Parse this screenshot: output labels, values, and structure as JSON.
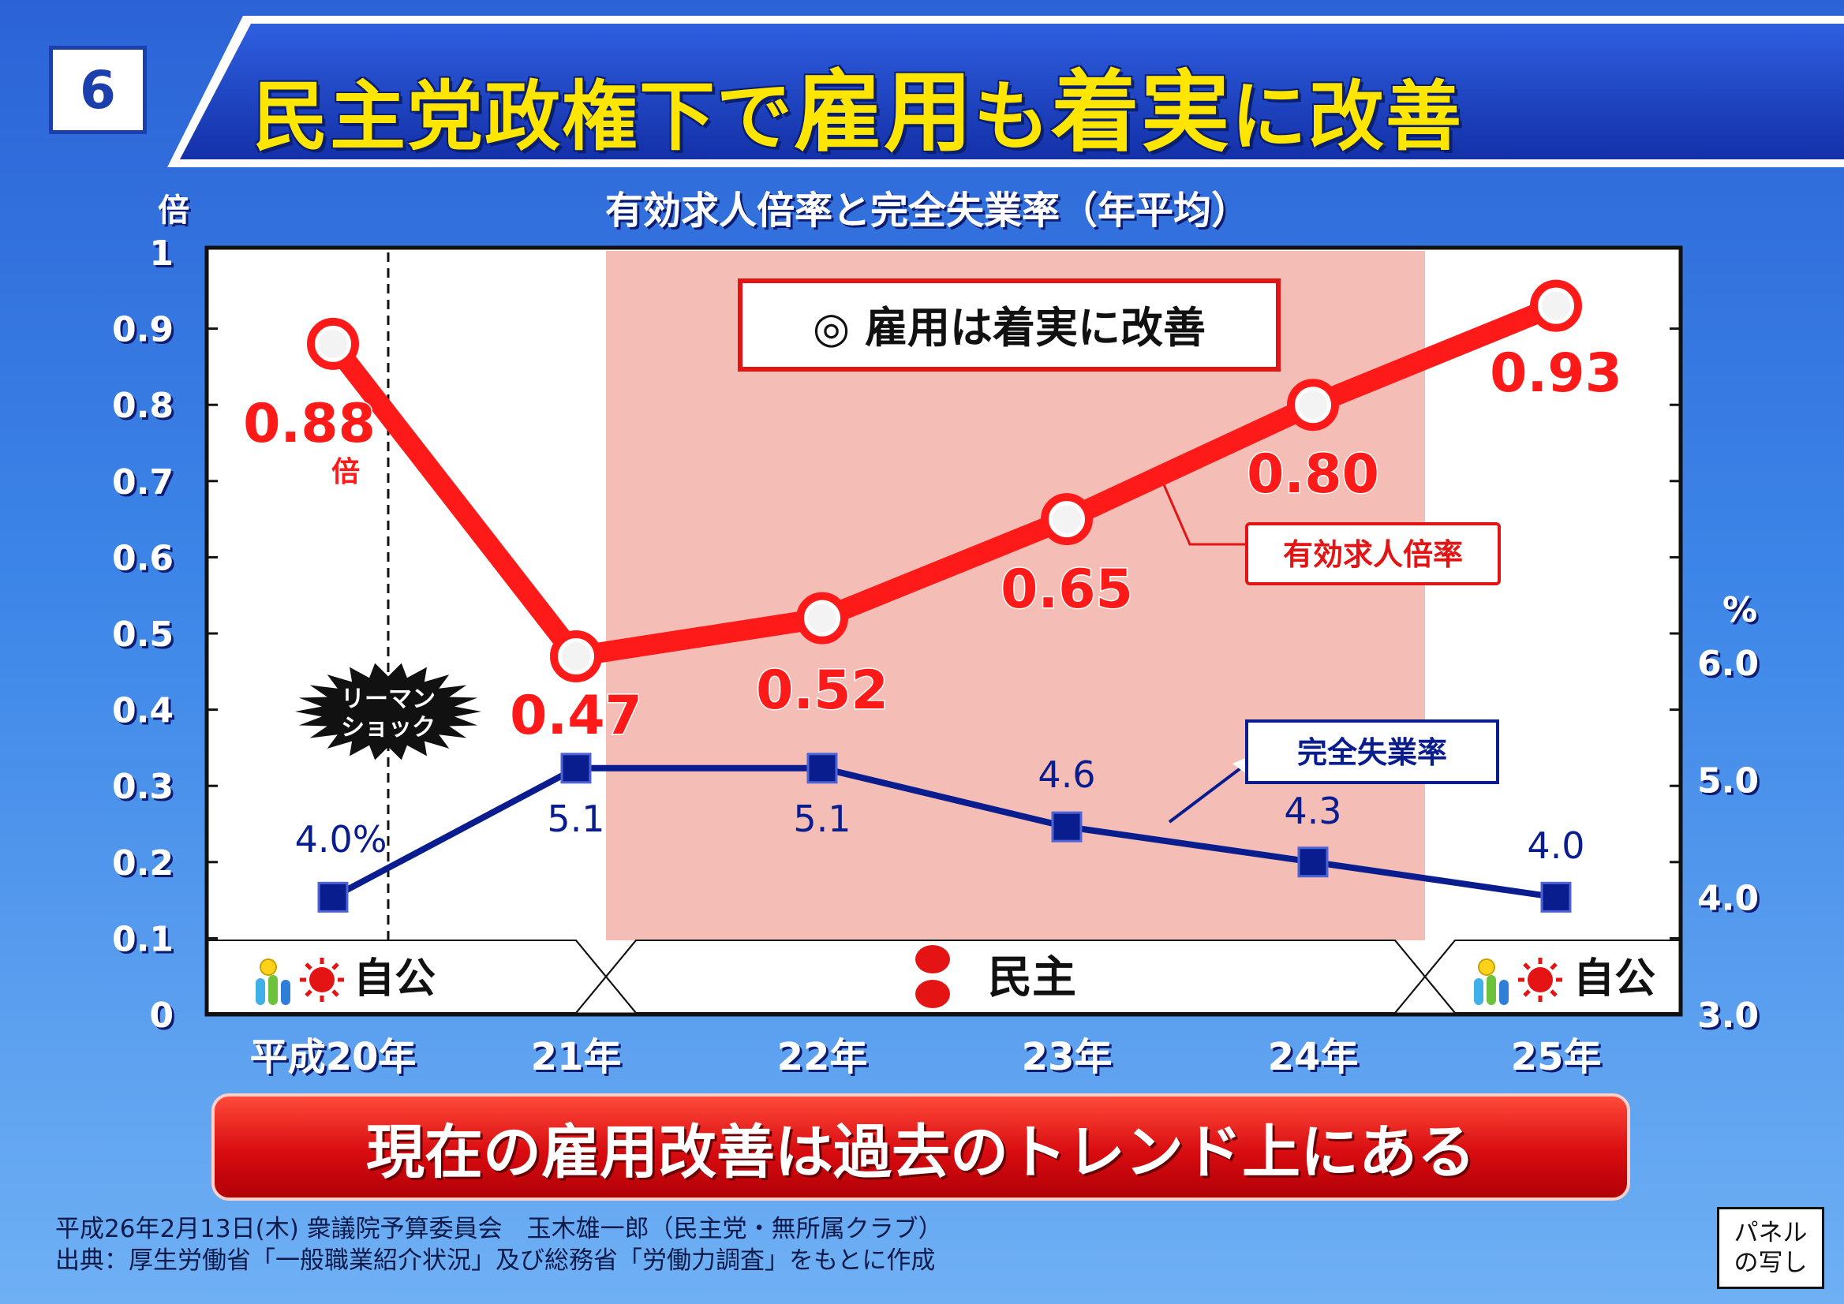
{
  "panel_number": "6",
  "title": {
    "part1": "民主党政権下で",
    "part2": "雇用",
    "part3": "も",
    "part4": "着実",
    "part5": "に改善"
  },
  "chart_data": {
    "type": "line",
    "title": "有効求人倍率と完全失業率（年平均）",
    "left_axis_unit": "倍",
    "right_axis_unit": "%",
    "categories": [
      "平成20年",
      "21年",
      "22年",
      "23年",
      "24年",
      "25年"
    ],
    "left_ylim": [
      0,
      1
    ],
    "left_ticks": [
      "0",
      "0.1",
      "0.2",
      "0.3",
      "0.4",
      "0.5",
      "0.6",
      "0.7",
      "0.8",
      "0.9",
      "1"
    ],
    "right_ylim": [
      3.0,
      6.0
    ],
    "right_ticks": [
      "3.0",
      "4.0",
      "5.0",
      "6.0"
    ],
    "series": [
      {
        "name": "有効求人倍率",
        "axis": "left",
        "color": "#ff1a1a",
        "values": [
          0.88,
          0.47,
          0.52,
          0.65,
          0.8,
          0.93
        ],
        "labels": [
          "0.88",
          "0.47",
          "0.52",
          "0.65",
          "0.80",
          "0.93"
        ],
        "first_label_unit": "倍"
      },
      {
        "name": "完全失業率",
        "axis": "right",
        "color": "#0a1d8f",
        "values": [
          4.0,
          5.1,
          5.1,
          4.6,
          4.3,
          4.0
        ],
        "labels": [
          "4.0%",
          "5.1",
          "5.1",
          "4.6",
          "4.3",
          "4.0"
        ]
      }
    ],
    "shaded_period": [
      "21年",
      "24年"
    ],
    "event_marker": "リーマンショック",
    "event_marker_lines": [
      "リーマン",
      "ショック"
    ],
    "callout": "◎ 雇用は着実に改善",
    "government_bands": [
      {
        "label": "自公",
        "from": "平成20年",
        "to": "21年",
        "icon": "sun-party-logo"
      },
      {
        "label": "民主",
        "from": "21年",
        "to": "25年",
        "icon": "minshu-logo"
      },
      {
        "label": "自公",
        "from": "25年",
        "to": "25年",
        "icon": "sun-party-logo"
      }
    ],
    "grid": false
  },
  "bottom_message": "現在の雇用改善は過去のトレンド上にある",
  "footer": {
    "line1": "平成26年2月13日(木) 衆議院予算委員会　玉木雄一郎（民主党・無所属クラブ）",
    "line2": "出典：厚生労働省「一般職業紹介状況」及び総務省「労働力調査」をもとに作成"
  },
  "stamp": {
    "line1": "パネル",
    "line2": "の写し"
  },
  "colors": {
    "title_yellow": "#ffe600",
    "banner_blue": "#1c3fae",
    "shade": "#f4bdb5",
    "red_line": "#ff1a1a",
    "blue_line": "#0a1d8f"
  }
}
